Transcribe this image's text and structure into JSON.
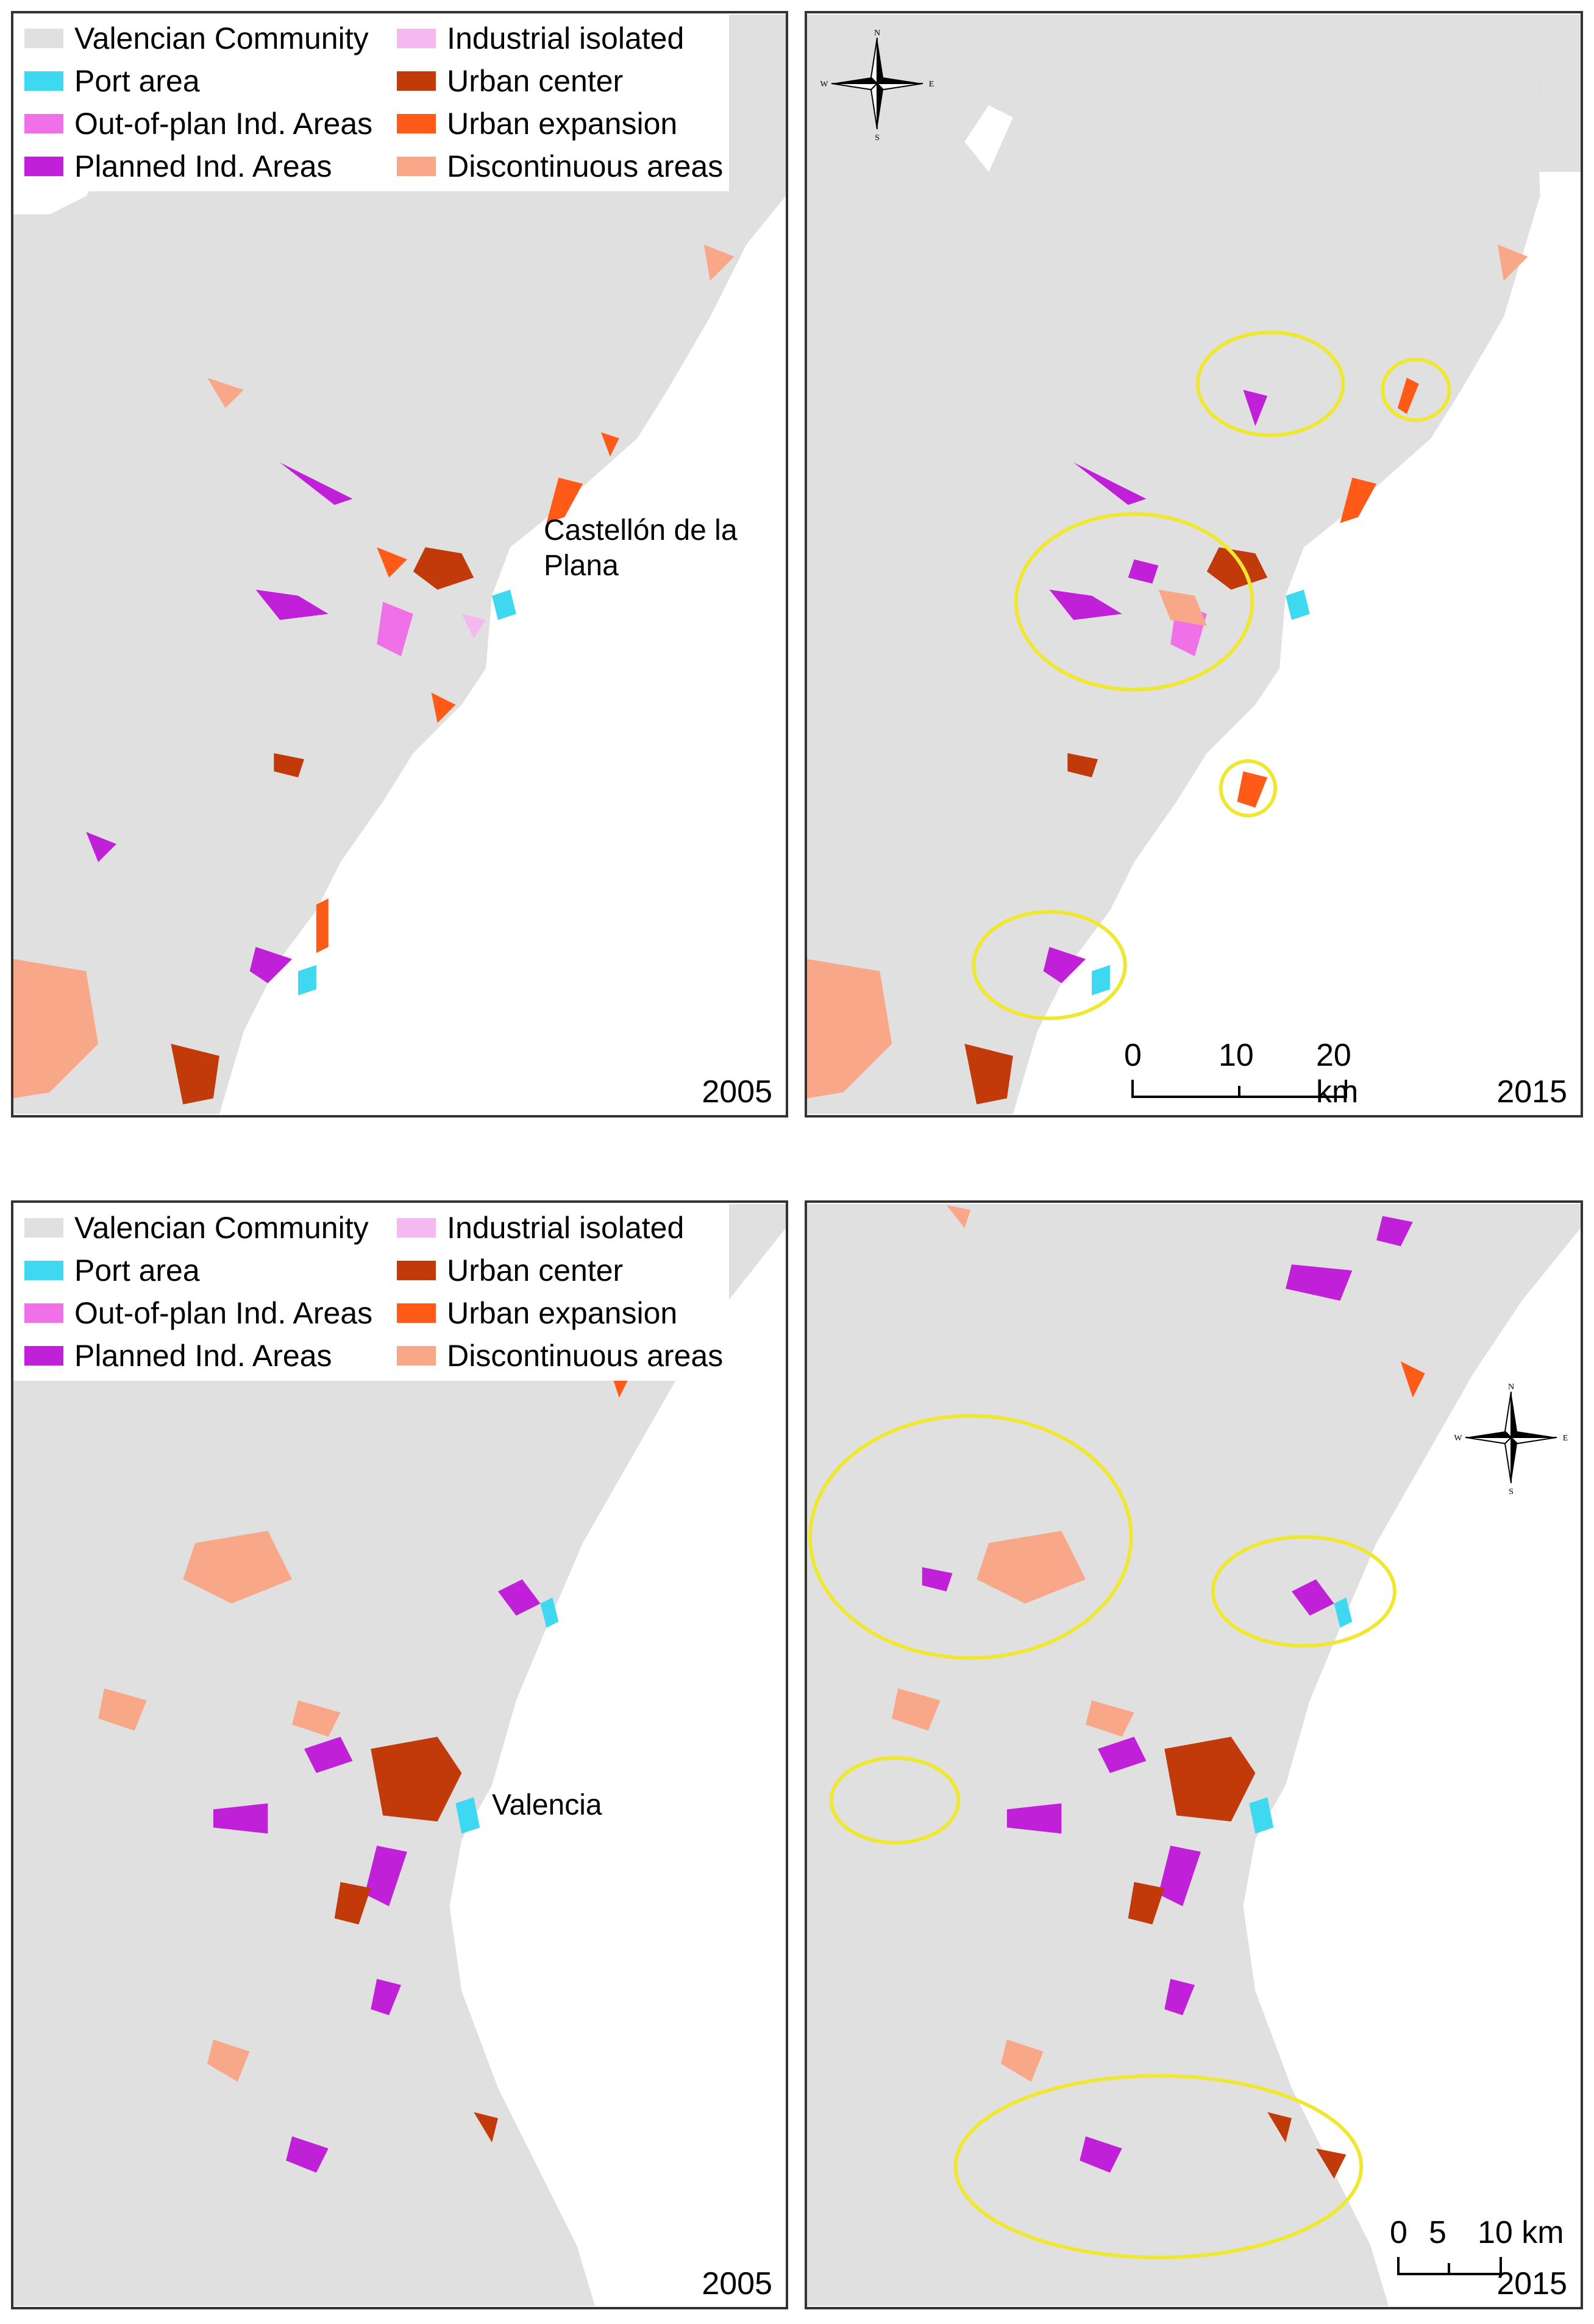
{
  "legend": {
    "items": [
      {
        "label": "Valencian Community",
        "color": "#e0e0e0"
      },
      {
        "label": "Industrial isolated",
        "color": "#f5b8f0"
      },
      {
        "label": "Port area",
        "color": "#3ed8f0"
      },
      {
        "label": "Urban center",
        "color": "#c23a0a"
      },
      {
        "label": "Out-of-plan Ind. Areas",
        "color": "#f070e8"
      },
      {
        "label": "Urban expansion",
        "color": "#ff5a18"
      },
      {
        "label": "Planned Ind. Areas",
        "color": "#c020d8"
      },
      {
        "label": "Discontinuous areas",
        "color": "#f8a888"
      }
    ]
  },
  "highlight_color": "#f0e830",
  "panels": {
    "top_left": {
      "year": "2005",
      "place": "Castellón de la Plana"
    },
    "top_right": {
      "year": "2015",
      "scale": {
        "ticks": [
          "0",
          "10",
          "20 km"
        ]
      },
      "compass": [
        "N",
        "S",
        "E",
        "W"
      ]
    },
    "bottom_left": {
      "year": "2005",
      "place": "Valencia"
    },
    "bottom_right": {
      "year": "2015",
      "scale": {
        "ticks": [
          "0",
          "5",
          "10 km"
        ]
      },
      "compass": [
        "N",
        "S",
        "E",
        "W"
      ]
    }
  }
}
